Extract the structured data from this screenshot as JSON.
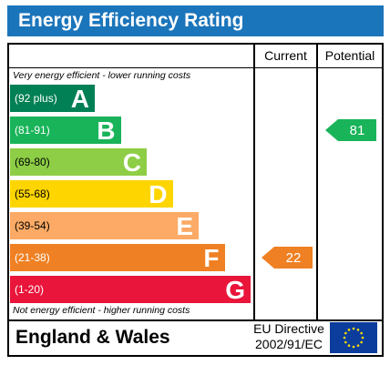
{
  "header": {
    "title": "Energy Efficiency Rating"
  },
  "columns": {
    "current": "Current",
    "potential": "Potential"
  },
  "scale_notes": {
    "top": "Very energy efficient - lower running costs",
    "bottom": "Not energy efficient - higher running costs"
  },
  "chart_data": {
    "type": "bar",
    "title": "Energy Efficiency Rating",
    "bands": [
      {
        "range": "(92 plus)",
        "letter": "A",
        "color": "#008054"
      },
      {
        "range": "(81-91)",
        "letter": "B",
        "color": "#19b459"
      },
      {
        "range": "(69-80)",
        "letter": "C",
        "color": "#8dce46"
      },
      {
        "range": "(55-68)",
        "letter": "D",
        "color": "#ffd500"
      },
      {
        "range": "(39-54)",
        "letter": "E",
        "color": "#fcaa65"
      },
      {
        "range": "(21-38)",
        "letter": "F",
        "color": "#ef8023"
      },
      {
        "range": "(1-20)",
        "letter": "G",
        "color": "#e9153b"
      }
    ],
    "ratings": {
      "current": {
        "value": 22,
        "band": "F",
        "color": "#ef8023"
      },
      "potential": {
        "value": 81,
        "band": "B",
        "color": "#19b459"
      }
    }
  },
  "footer": {
    "region": "England & Wales",
    "directive_line1": "EU Directive",
    "directive_line2": "2002/91/EC"
  }
}
